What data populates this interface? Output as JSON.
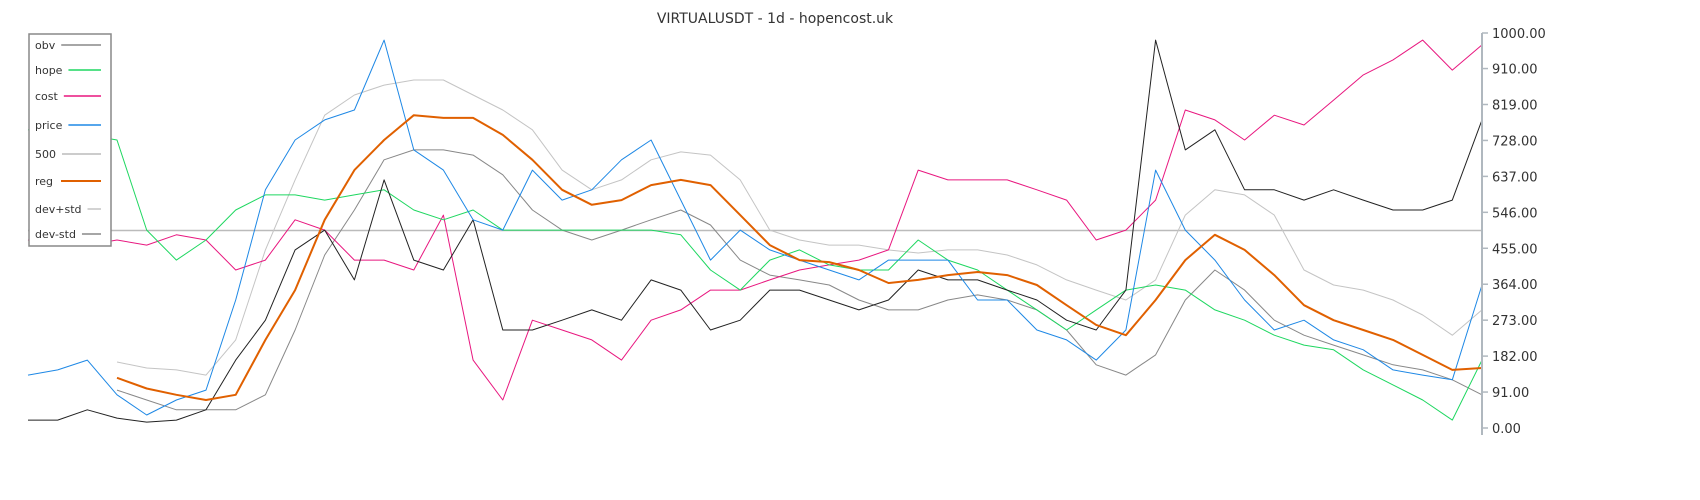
{
  "chart_data": {
    "type": "line",
    "title": "VIRTUALUSDT - 1d - hopencost.uk",
    "ylim": [
      0,
      1000
    ],
    "y_ticks": [
      "0.00",
      "91.00",
      "182.00",
      "273.00",
      "364.00",
      "455.00",
      "546.00",
      "637.00",
      "728.00",
      "819.00",
      "910.00",
      "1000.00"
    ],
    "y_axis_side": "right",
    "grid": false,
    "legend_position": "top-left",
    "x": [
      0,
      1,
      2,
      3,
      4,
      5,
      6,
      7,
      8,
      9,
      10,
      11,
      12,
      13,
      14,
      15,
      16,
      17,
      18,
      19,
      20,
      21,
      22,
      23,
      24,
      25,
      26,
      27,
      28,
      29,
      30,
      31,
      32,
      33,
      34,
      35,
      36,
      37,
      38,
      39,
      40,
      41,
      42,
      43,
      44,
      45,
      46,
      47,
      48,
      49
    ],
    "series": [
      {
        "name": "obv",
        "color": "#222222",
        "width": 1,
        "values": [
          20,
          20,
          46,
          25,
          15,
          20,
          46,
          172,
          273,
          451,
          501,
          375,
          628,
          425,
          400,
          527,
          248,
          248,
          273,
          299,
          273,
          375,
          349,
          248,
          273,
          349,
          349,
          324,
          299,
          324,
          400,
          375,
          375,
          349,
          324,
          273,
          248,
          349,
          982,
          704,
          755,
          603,
          603,
          577,
          603,
          577,
          552,
          552,
          577,
          780
        ]
      },
      {
        "name": "hope",
        "color": "#1ed760",
        "width": 1,
        "values": [
          755,
          742,
          742,
          729,
          501,
          425,
          476,
          552,
          590,
          590,
          577,
          590,
          603,
          552,
          527,
          552,
          501,
          501,
          501,
          501,
          501,
          501,
          489,
          400,
          349,
          425,
          451,
          413,
          400,
          400,
          476,
          425,
          400,
          349,
          299,
          248,
          299,
          349,
          362,
          349,
          299,
          273,
          235,
          210,
          198,
          147,
          109,
          71,
          20,
          172
        ]
      },
      {
        "name": "cost",
        "color": "#e8177f",
        "width": 1,
        "values": [
          476,
          463,
          463,
          476,
          463,
          489,
          476,
          400,
          425,
          527,
          501,
          425,
          425,
          400,
          539,
          172,
          71,
          273,
          248,
          223,
          172,
          273,
          299,
          349,
          349,
          375,
          400,
          413,
          425,
          451,
          653,
          628,
          628,
          628,
          603,
          577,
          476,
          501,
          577,
          805,
          780,
          729,
          792,
          767,
          830,
          894,
          932,
          982,
          906,
          970
        ]
      },
      {
        "name": "price",
        "color": "#1e88e5",
        "width": 1,
        "values": [
          134,
          147,
          172,
          84,
          33,
          71,
          96,
          324,
          603,
          729,
          780,
          805,
          982,
          704,
          653,
          527,
          501,
          653,
          577,
          603,
          679,
          729,
          577,
          425,
          501,
          451,
          425,
          400,
          375,
          425,
          425,
          425,
          324,
          324,
          248,
          223,
          172,
          248,
          653,
          501,
          425,
          324,
          248,
          273,
          223,
          198,
          147,
          134,
          122,
          362
        ]
      },
      {
        "name": "500",
        "color": "#bbbbbb",
        "width": 1.5,
        "values": [
          500,
          500,
          500,
          500,
          500,
          500,
          500,
          500,
          500,
          500,
          500,
          500,
          500,
          500,
          500,
          500,
          500,
          500,
          500,
          500,
          500,
          500,
          500,
          500,
          500,
          500,
          500,
          500,
          500,
          500,
          500,
          500,
          500,
          500,
          500,
          500,
          500,
          500,
          500,
          500,
          500,
          500,
          500,
          500,
          500,
          500,
          500,
          500,
          500,
          500
        ]
      },
      {
        "name": "reg",
        "color": "#e06000",
        "width": 2,
        "values": [
          null,
          null,
          null,
          127,
          100,
          84,
          71,
          84,
          223,
          349,
          527,
          653,
          729,
          792,
          785,
          785,
          742,
          679,
          603,
          565,
          577,
          615,
          628,
          615,
          539,
          463,
          425,
          420,
          400,
          367,
          375,
          387,
          395,
          387,
          362,
          311,
          261,
          235,
          324,
          425,
          489,
          451,
          387,
          311,
          273,
          248,
          223,
          185,
          147,
          152
        ]
      },
      {
        "name": "dev+std",
        "color": "#c4c4c4",
        "width": 1,
        "values": [
          null,
          null,
          null,
          167,
          152,
          147,
          134,
          223,
          451,
          628,
          792,
          843,
          868,
          881,
          881,
          843,
          805,
          755,
          653,
          603,
          628,
          679,
          699,
          691,
          628,
          501,
          476,
          463,
          463,
          451,
          443,
          451,
          451,
          438,
          413,
          375,
          349,
          324,
          375,
          539,
          603,
          590,
          539,
          400,
          362,
          349,
          324,
          286,
          235,
          299
        ]
      },
      {
        "name": "dev-std",
        "color": "#888888",
        "width": 1,
        "values": [
          null,
          null,
          null,
          96,
          71,
          46,
          46,
          46,
          84,
          248,
          438,
          552,
          679,
          704,
          704,
          691,
          641,
          552,
          501,
          476,
          501,
          527,
          552,
          514,
          425,
          387,
          375,
          362,
          324,
          299,
          299,
          324,
          337,
          324,
          299,
          248,
          160,
          134,
          185,
          324,
          400,
          349,
          273,
          235,
          210,
          185,
          160,
          147,
          122,
          84
        ]
      }
    ]
  }
}
